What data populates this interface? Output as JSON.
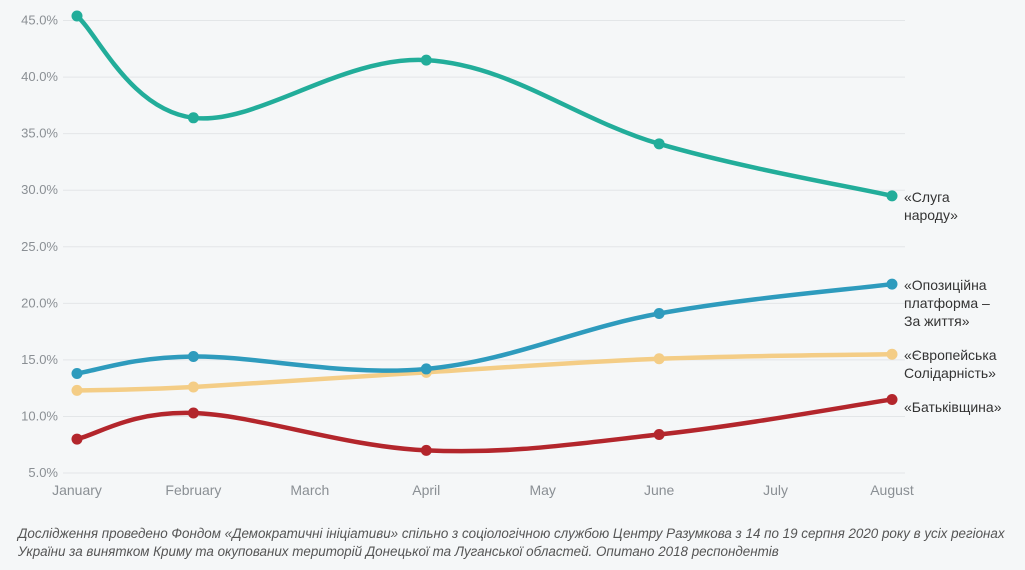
{
  "chart_data": {
    "type": "line",
    "categories": [
      "January",
      "February",
      "March",
      "April",
      "May",
      "June",
      "July",
      "August"
    ],
    "ylim": [
      5,
      46
    ],
    "yticks": [
      "5.0%",
      "10.0%",
      "15.0%",
      "20.0%",
      "25.0%",
      "30.0%",
      "35.0%",
      "40.0%",
      "45.0%"
    ],
    "ytick_values": [
      5,
      10,
      15,
      20,
      25,
      30,
      35,
      40,
      45
    ],
    "grid": true,
    "series": [
      {
        "name": "«Європейська Солідарність»",
        "label_lines": [
          "«Європейська",
          "Солідарність»"
        ],
        "color": "#f4cd86",
        "points": [
          [
            "January",
            12.3
          ],
          [
            "February",
            12.6
          ],
          [
            "April",
            13.9
          ],
          [
            "June",
            15.1
          ],
          [
            "August",
            15.5
          ]
        ]
      },
      {
        "name": "«Батьківщина»",
        "label_lines": [
          "«Батьківщина»"
        ],
        "color": "#b3262c",
        "points": [
          [
            "January",
            8.0
          ],
          [
            "February",
            10.3
          ],
          [
            "April",
            7.0
          ],
          [
            "June",
            8.4
          ],
          [
            "August",
            11.5
          ]
        ]
      },
      {
        "name": "«Опозиційна платформа – За життя»",
        "label_lines": [
          "«Опозиційна",
          "платформа –",
          "За життя»"
        ],
        "color": "#2e9bbd",
        "points": [
          [
            "January",
            13.8
          ],
          [
            "February",
            15.3
          ],
          [
            "April",
            14.2
          ],
          [
            "June",
            19.1
          ],
          [
            "August",
            21.7
          ]
        ]
      },
      {
        "name": "«Слуга народу»",
        "label_lines": [
          "«Слуга",
          "народу»"
        ],
        "color": "#22ad9a",
        "points": [
          [
            "January",
            45.4
          ],
          [
            "February",
            36.4
          ],
          [
            "April",
            41.5
          ],
          [
            "June",
            34.1
          ],
          [
            "August",
            29.5
          ]
        ]
      }
    ]
  },
  "footnote": "Дослідження проведено Фондом «Демократичні ініціативи» спільно з соціологічною службою Центру Разумкова з 14 по 19 серпня 2020 року в усіх регіонах України за винятком Криму та окупованих територій Донецької та Луганської областей. Опитано 2018 респондентів"
}
